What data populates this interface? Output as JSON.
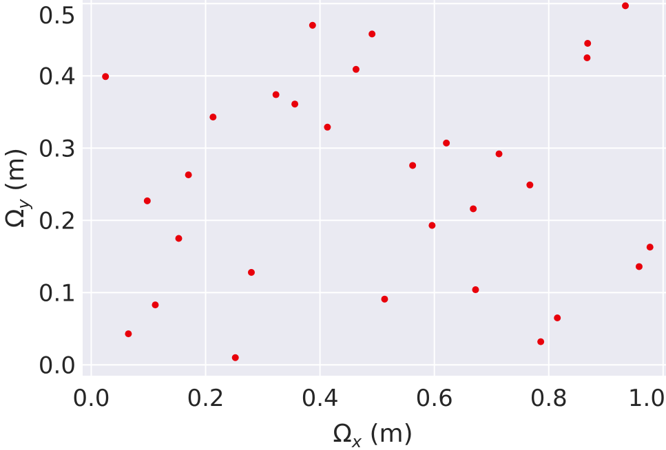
{
  "chart_data": {
    "type": "scatter",
    "xlabel": "Ω",
    "xlabel_sub": "x",
    "xlabel_unit": " (m)",
    "ylabel": "Ω",
    "ylabel_sub": "y",
    "ylabel_unit": " (m)",
    "xlim": [
      -0.015,
      1.005
    ],
    "ylim": [
      -0.015,
      0.505
    ],
    "xticks": [
      "0.0",
      "0.2",
      "0.4",
      "0.6",
      "0.8",
      "1.0"
    ],
    "yticks": [
      "0.0",
      "0.1",
      "0.2",
      "0.3",
      "0.4",
      "0.5"
    ],
    "grid": true,
    "background": "#eaeaf2",
    "marker_color": "#e8000b",
    "points": [
      {
        "x": 0.025,
        "y": 0.399
      },
      {
        "x": 0.065,
        "y": 0.043
      },
      {
        "x": 0.098,
        "y": 0.227
      },
      {
        "x": 0.112,
        "y": 0.083
      },
      {
        "x": 0.153,
        "y": 0.175
      },
      {
        "x": 0.17,
        "y": 0.263
      },
      {
        "x": 0.213,
        "y": 0.343
      },
      {
        "x": 0.252,
        "y": 0.01
      },
      {
        "x": 0.28,
        "y": 0.128
      },
      {
        "x": 0.323,
        "y": 0.374
      },
      {
        "x": 0.356,
        "y": 0.361
      },
      {
        "x": 0.387,
        "y": 0.47
      },
      {
        "x": 0.413,
        "y": 0.329
      },
      {
        "x": 0.463,
        "y": 0.409
      },
      {
        "x": 0.491,
        "y": 0.458
      },
      {
        "x": 0.513,
        "y": 0.091
      },
      {
        "x": 0.562,
        "y": 0.276
      },
      {
        "x": 0.596,
        "y": 0.193
      },
      {
        "x": 0.621,
        "y": 0.307
      },
      {
        "x": 0.668,
        "y": 0.216
      },
      {
        "x": 0.672,
        "y": 0.104
      },
      {
        "x": 0.713,
        "y": 0.292
      },
      {
        "x": 0.767,
        "y": 0.249
      },
      {
        "x": 0.786,
        "y": 0.032
      },
      {
        "x": 0.815,
        "y": 0.065
      },
      {
        "x": 0.867,
        "y": 0.425
      },
      {
        "x": 0.868,
        "y": 0.445
      },
      {
        "x": 0.934,
        "y": 0.497
      },
      {
        "x": 0.958,
        "y": 0.136
      },
      {
        "x": 0.977,
        "y": 0.163
      }
    ]
  }
}
